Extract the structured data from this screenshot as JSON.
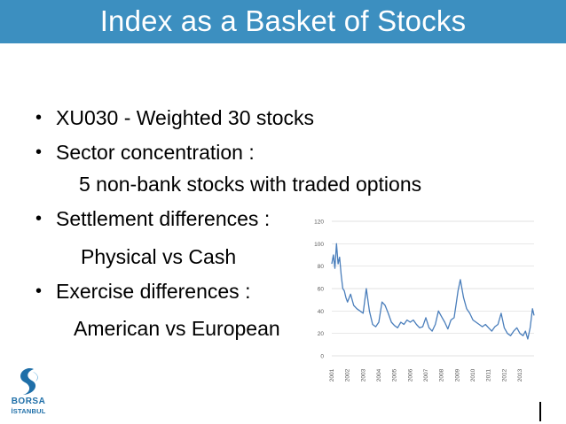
{
  "slide": {
    "title": "Index as a Basket of Stocks",
    "bullets": [
      "XU030 - Weighted 30 stocks",
      "Sector concentration :",
      "5 non-bank stocks with traded options",
      "Settlement differences :",
      "Physical vs Cash",
      "Exercise differences :",
      "American vs European"
    ],
    "bullet_symbol": "•"
  },
  "logo": {
    "line1": "BORSA",
    "line2": "İSTANBUL",
    "color": "#1f6fa8"
  },
  "colors": {
    "title_bar": "#3c8fc0",
    "series": "#4a7ebb",
    "gridline": "#d9d9d9"
  },
  "chart_data": {
    "type": "line",
    "title": "",
    "xlabel": "",
    "ylabel": "",
    "ylim": [
      0,
      120
    ],
    "yticks": [
      0,
      20,
      40,
      60,
      80,
      100,
      120
    ],
    "categories": [
      "2001",
      "2002",
      "2003",
      "2004",
      "2005",
      "2006",
      "2007",
      "2008",
      "2009",
      "2010",
      "2011",
      "2012",
      "2013"
    ],
    "xlim": [
      2001,
      2013.9
    ],
    "grid": "horizontal",
    "legend": "none",
    "series": [
      {
        "x": [
          2001.0,
          2001.1,
          2001.2,
          2001.3,
          2001.4,
          2001.5,
          2001.6,
          2001.7,
          2001.8,
          2001.9,
          2002.0,
          2002.2,
          2002.4,
          2002.6,
          2002.8,
          2003.0,
          2003.2,
          2003.4,
          2003.6,
          2003.8,
          2004.0,
          2004.2,
          2004.4,
          2004.6,
          2004.8,
          2005.0,
          2005.2,
          2005.4,
          2005.6,
          2005.8,
          2006.0,
          2006.2,
          2006.4,
          2006.6,
          2006.8,
          2007.0,
          2007.2,
          2007.4,
          2007.6,
          2007.8,
          2008.0,
          2008.2,
          2008.4,
          2008.6,
          2008.8,
          2008.95,
          2009.05,
          2009.2,
          2009.4,
          2009.6,
          2009.8,
          2010.0,
          2010.2,
          2010.4,
          2010.6,
          2010.8,
          2011.0,
          2011.2,
          2011.4,
          2011.6,
          2011.8,
          2012.0,
          2012.2,
          2012.4,
          2012.6,
          2012.8,
          2013.0,
          2013.2,
          2013.35,
          2013.5,
          2013.65,
          2013.8,
          2013.9
        ],
        "values": [
          82,
          90,
          78,
          100,
          82,
          88,
          72,
          60,
          58,
          52,
          48,
          55,
          45,
          42,
          40,
          38,
          60,
          40,
          28,
          26,
          30,
          48,
          45,
          38,
          30,
          27,
          25,
          30,
          28,
          32,
          30,
          32,
          28,
          25,
          26,
          34,
          25,
          22,
          28,
          40,
          35,
          30,
          24,
          32,
          34,
          48,
          58,
          68,
          52,
          42,
          38,
          32,
          30,
          28,
          26,
          28,
          25,
          22,
          26,
          28,
          38,
          25,
          20,
          18,
          22,
          25,
          20,
          18,
          22,
          15,
          25,
          42,
          36
        ]
      }
    ]
  }
}
